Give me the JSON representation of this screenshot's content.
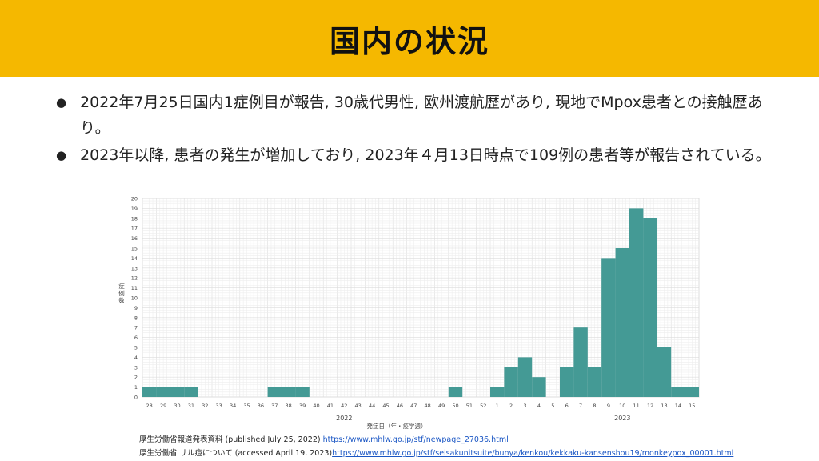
{
  "header": {
    "title": "国内の状況"
  },
  "bullets": [
    "2022年7月25日国内1症例目が報告, 30歳代男性, 欧州渡航歴があり, 現地でMpox患者との接触歴あり。",
    "2023年以降, 患者の発生が増加しており, 2023年４月13日時点で109例の患者等が報告されている。"
  ],
  "chart_data": {
    "type": "bar",
    "xlabel": "発症日（年・疫学週）",
    "ylabel": "症例数",
    "ylim": [
      0,
      20
    ],
    "y_ticks": [
      0,
      1,
      2,
      3,
      4,
      5,
      6,
      7,
      8,
      9,
      10,
      11,
      12,
      13,
      14,
      15,
      16,
      17,
      18,
      19,
      20
    ],
    "grid": true,
    "bar_color": "#449a95",
    "year_labels": [
      {
        "label": "2022",
        "at_category": "42"
      },
      {
        "label": "2023",
        "at_category": "10"
      }
    ],
    "categories": [
      "28",
      "29",
      "30",
      "31",
      "32",
      "33",
      "34",
      "35",
      "36",
      "37",
      "38",
      "39",
      "40",
      "41",
      "42",
      "43",
      "44",
      "45",
      "46",
      "47",
      "48",
      "49",
      "50",
      "51",
      "52",
      "1",
      "2",
      "3",
      "4",
      "5",
      "6",
      "7",
      "8",
      "9",
      "10",
      "11",
      "12",
      "13",
      "14",
      "15"
    ],
    "values": [
      1,
      1,
      1,
      1,
      0,
      0,
      0,
      0,
      0,
      1,
      1,
      1,
      0,
      0,
      0,
      0,
      0,
      0,
      0,
      0,
      0,
      0,
      1,
      0,
      0,
      1,
      3,
      4,
      2,
      0,
      3,
      7,
      3,
      14,
      15,
      19,
      18,
      5,
      1,
      1
    ]
  },
  "sources": [
    {
      "text": "厚生労働省報道発表資料 (published July 25, 2022) ",
      "link": "https://www.mhlw.go.jp/stf/newpage_27036.html"
    },
    {
      "text": "厚生労働省 サル痘について (accessed April 19, 2023)",
      "link": "https://www.mhlw.go.jp/stf/seisakunitsuite/bunya/kenkou/kekkaku-kansenshou19/monkeypox_00001.html"
    }
  ]
}
